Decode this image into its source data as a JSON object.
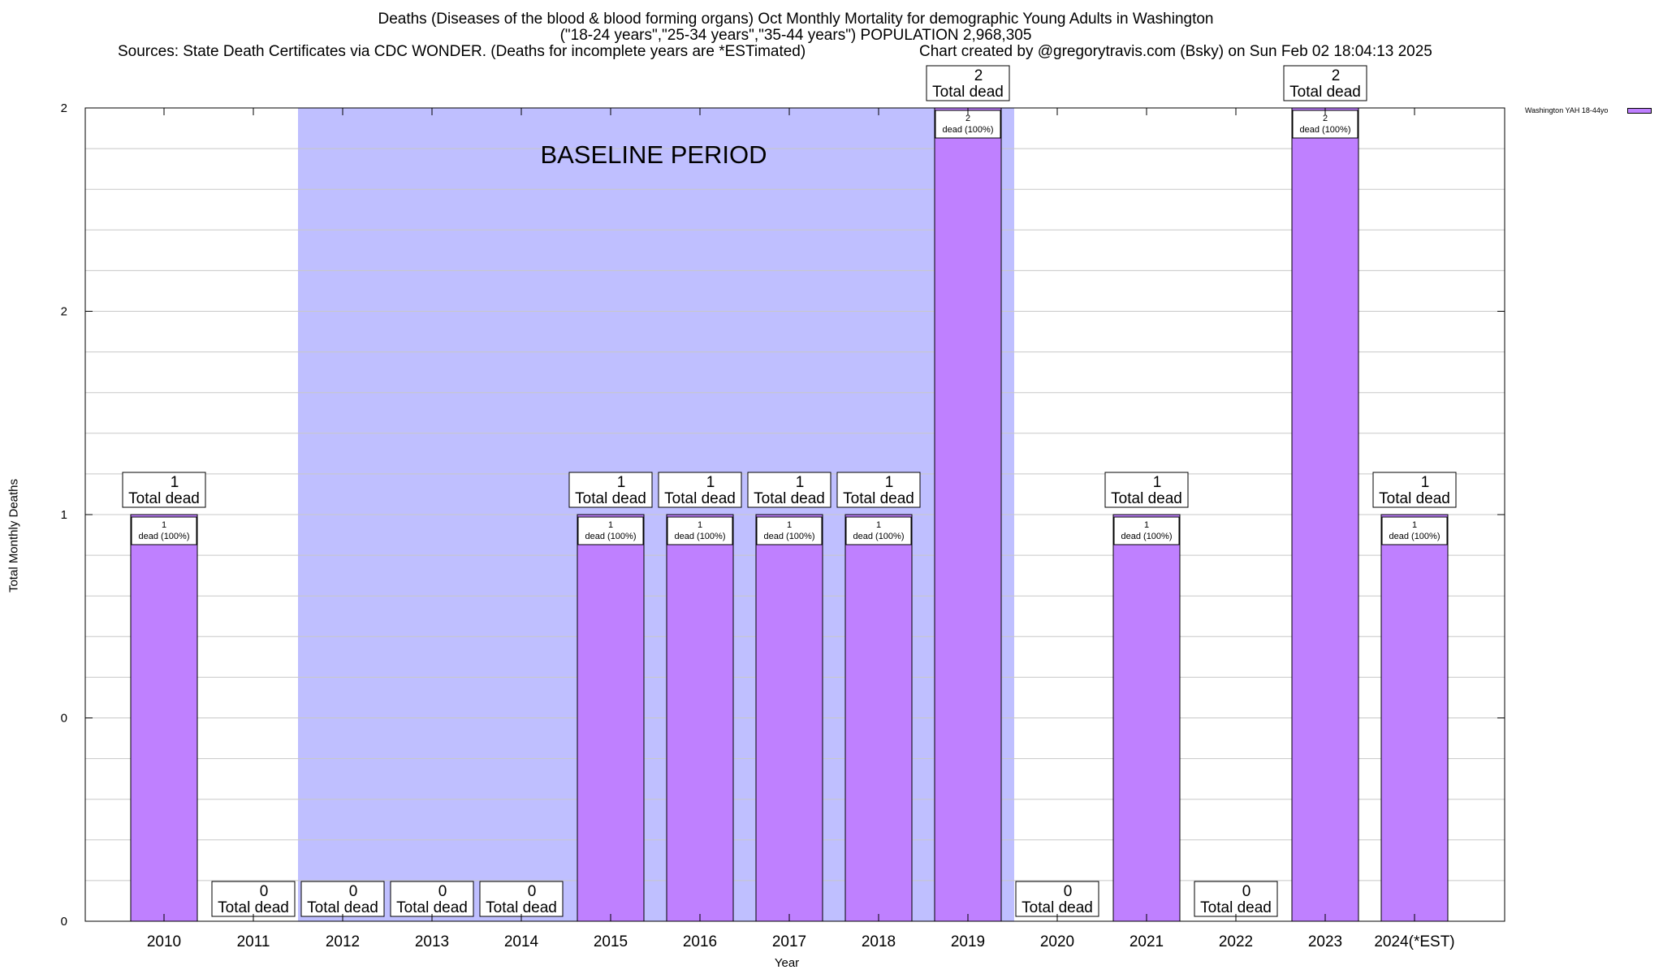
{
  "chart_data": {
    "type": "bar",
    "title": "Deaths (Diseases of the blood & blood forming organs) Oct Monthly Mortality for demographic Young Adults in Washington",
    "subtitle": "(\"18-24 years\",\"25-34 years\",\"35-44 years\") POPULATION 2,968,305",
    "sources": "Sources: State Death Certificates via CDC WONDER. (Deaths for incomplete years are *ESTimated)",
    "credit": "Chart created by @gregorytravis.com (Bsky) on Sun Feb 02 18:04:13 2025",
    "xlabel": "Year",
    "ylabel": "Total Monthly Deaths",
    "ylim": [
      0,
      2
    ],
    "yticks": [
      0,
      0.5,
      1,
      1.5,
      2
    ],
    "ytick_labels": [
      "0",
      "0",
      "1",
      "2",
      "2"
    ],
    "grid": true,
    "categories": [
      "2010",
      "2011",
      "2012",
      "2013",
      "2014",
      "2015",
      "2016",
      "2017",
      "2018",
      "2019",
      "2020",
      "2021",
      "2022",
      "2023",
      "2024(*EST)"
    ],
    "series": [
      {
        "name": "Washington YAH 18-44yo",
        "color": "#bf80ff",
        "values": [
          1,
          0,
          0,
          0,
          0,
          1,
          1,
          1,
          1,
          2,
          0,
          1,
          0,
          2,
          1
        ]
      }
    ],
    "total_label_suffix": "Total dead",
    "inner_label_suffix": "dead (100%)",
    "baseline": {
      "label": "BASELINE PERIOD",
      "from": "2012",
      "to": "2019",
      "color": "#bfbfff"
    },
    "legend_position": "top-right"
  }
}
